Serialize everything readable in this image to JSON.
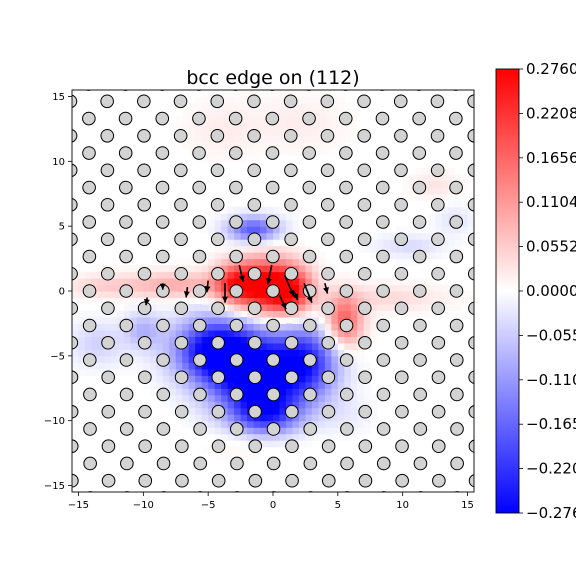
{
  "chart_data": {
    "type": "heatmap",
    "title": "bcc edge on (112)",
    "xlabel": "",
    "ylabel": "",
    "xlim": [
      -15.5,
      15.5
    ],
    "ylim": [
      -15.5,
      15.5
    ],
    "x_ticks": [
      -15,
      -10,
      -5,
      0,
      5,
      10,
      15
    ],
    "x_tick_labels": [
      "−15",
      "−10",
      "−5",
      "0",
      "5",
      "10",
      "15"
    ],
    "y_ticks": [
      -15,
      -10,
      -5,
      0,
      5,
      10,
      15
    ],
    "y_tick_labels": [
      "−15",
      "−10",
      "−5",
      "0",
      "5",
      "10",
      "15"
    ],
    "colormap": "bwr",
    "colorbar": {
      "min": -0.276,
      "max": 0.276,
      "ticks": [
        0.276,
        0.2208,
        0.1656,
        0.1104,
        0.0552,
        0.0,
        -0.0552,
        -0.1104,
        -0.1656,
        -0.2208,
        -0.276
      ],
      "tick_labels": [
        "0.2760",
        "0.2208",
        "0.1656",
        "0.1104",
        "0.0552",
        "0.0000",
        "−0.055",
        "−0.110",
        "−0.165",
        "−0.220",
        "−0.276"
      ]
    },
    "field_blobs": [
      {
        "x": -0.6,
        "y": 0.4,
        "sx": 1.6,
        "sy": 1.5,
        "value": 0.27
      },
      {
        "x": 1.5,
        "y": 0.0,
        "sx": 1.2,
        "sy": 1.3,
        "value": 0.2
      },
      {
        "x": -3.0,
        "y": 0.6,
        "sx": 1.2,
        "sy": 1.1,
        "value": 0.18
      },
      {
        "x": 5.5,
        "y": -2.3,
        "sx": 1.0,
        "sy": 1.4,
        "value": 0.18
      },
      {
        "x": -7.5,
        "y": 0.5,
        "sx": 2.5,
        "sy": 0.7,
        "value": 0.09
      },
      {
        "x": -13.0,
        "y": 0.4,
        "sx": 2.0,
        "sy": 0.6,
        "value": 0.05
      },
      {
        "x": 9.0,
        "y": -0.5,
        "sx": 3.0,
        "sy": 0.7,
        "value": 0.04
      },
      {
        "x": 12.5,
        "y": 8.2,
        "sx": 1.3,
        "sy": 0.7,
        "value": 0.03
      },
      {
        "x": -4.0,
        "y": 12.5,
        "sx": 2.0,
        "sy": 1.5,
        "value": 0.02
      },
      {
        "x": 2.0,
        "y": 13.0,
        "sx": 2.5,
        "sy": 1.5,
        "value": 0.02
      },
      {
        "x": -1.5,
        "y": -11.5,
        "sx": 2.5,
        "sy": 1.0,
        "value": 0.03
      },
      {
        "x": -4.5,
        "y": -4.5,
        "sx": 2.2,
        "sy": 1.7,
        "value": -0.27
      },
      {
        "x": -1.5,
        "y": -6.5,
        "sx": 2.4,
        "sy": 2.2,
        "value": -0.27
      },
      {
        "x": 2.5,
        "y": -5.5,
        "sx": 1.8,
        "sy": 2.0,
        "value": -0.22
      },
      {
        "x": -0.5,
        "y": -9.5,
        "sx": 1.8,
        "sy": 1.2,
        "value": -0.18
      },
      {
        "x": -1.5,
        "y": 4.8,
        "sx": 1.4,
        "sy": 0.7,
        "value": -0.18
      },
      {
        "x": -10.0,
        "y": -3.0,
        "sx": 1.0,
        "sy": 1.0,
        "value": -0.08
      },
      {
        "x": -13.5,
        "y": -4.0,
        "sx": 1.5,
        "sy": 1.2,
        "value": -0.05
      },
      {
        "x": 10.5,
        "y": 3.5,
        "sx": 1.8,
        "sy": 0.6,
        "value": -0.04
      },
      {
        "x": 14.0,
        "y": 5.5,
        "sx": 1.0,
        "sy": 0.8,
        "value": -0.03
      },
      {
        "x": 5.5,
        "y": -9.5,
        "sx": 1.5,
        "sy": 1.0,
        "value": -0.02
      }
    ],
    "lattice": {
      "a1": [
        2.83,
        0.0
      ],
      "a2": [
        1.41,
        1.33
      ],
      "origin": [
        0.0,
        0.0
      ]
    },
    "displacements": [
      {
        "x": -0.1,
        "y": 2.0,
        "dx": -0.3,
        "dy": -1.5
      },
      {
        "x": 0.9,
        "y": 1.2,
        "dx": 0.7,
        "dy": -1.6
      },
      {
        "x": -2.6,
        "y": 2.0,
        "dx": 0.3,
        "dy": -1.3
      },
      {
        "x": 2.4,
        "y": 0.6,
        "dx": 0.6,
        "dy": -1.5
      },
      {
        "x": -3.7,
        "y": 0.6,
        "dx": 0.0,
        "dy": -1.5
      },
      {
        "x": 0.5,
        "y": -0.3,
        "dx": 0.5,
        "dy": -1.1
      },
      {
        "x": -5.0,
        "y": 0.8,
        "dx": -0.1,
        "dy": -0.9
      },
      {
        "x": 1.6,
        "y": 0.0,
        "dx": 0.3,
        "dy": -0.7
      },
      {
        "x": -6.6,
        "y": 0.3,
        "dx": -0.1,
        "dy": -0.8
      },
      {
        "x": 4.0,
        "y": 0.6,
        "dx": 0.2,
        "dy": -0.8
      },
      {
        "x": -8.5,
        "y": 0.6,
        "dx": 0.0,
        "dy": -0.5
      },
      {
        "x": -9.7,
        "y": -0.5,
        "dx": -0.1,
        "dy": -0.6
      }
    ]
  }
}
